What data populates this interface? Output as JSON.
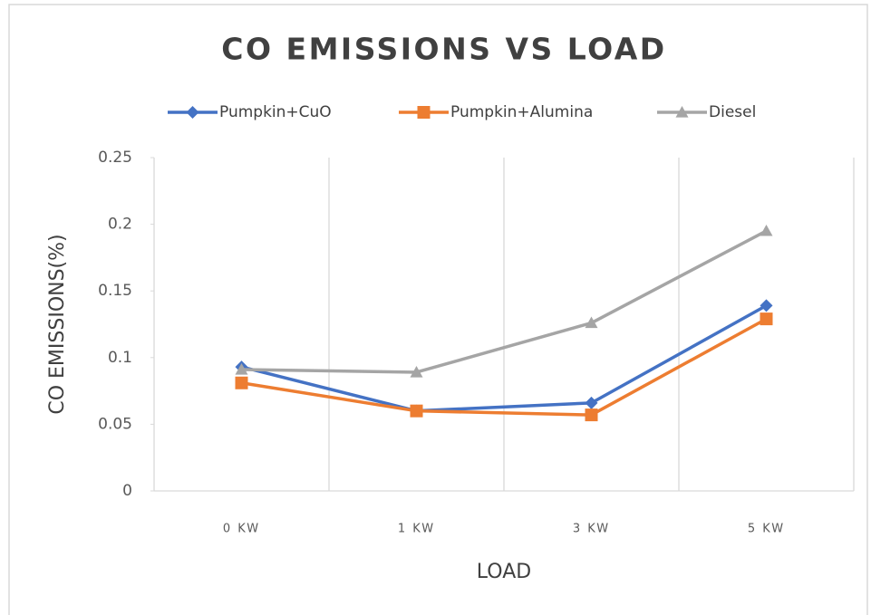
{
  "chart_data": {
    "type": "line",
    "title": "CO EMISSIONS VS LOAD",
    "x_label": "LOAD",
    "y_label": "CO EMISSIONS(%)",
    "categories": [
      "0 KW",
      "1 KW",
      "3 KW",
      "5 KW"
    ],
    "series": [
      {
        "name": "Pumpkin+CuO",
        "color": "#4472c4",
        "marker": "diamond",
        "values": [
          0.093,
          0.06,
          0.066,
          0.139
        ]
      },
      {
        "name": "Pumpkin+Alumina",
        "color": "#ed7d31",
        "marker": "square",
        "values": [
          0.081,
          0.06,
          0.057,
          0.129
        ]
      },
      {
        "name": "Diesel",
        "color": "#a5a5a5",
        "marker": "triangle",
        "values": [
          0.091,
          0.089,
          0.126,
          0.195
        ]
      }
    ],
    "ylim": [
      0,
      0.25
    ],
    "yticks": [
      0,
      0.05,
      0.1,
      0.15,
      0.2,
      0.25
    ],
    "grid": "x",
    "legend": "top"
  }
}
